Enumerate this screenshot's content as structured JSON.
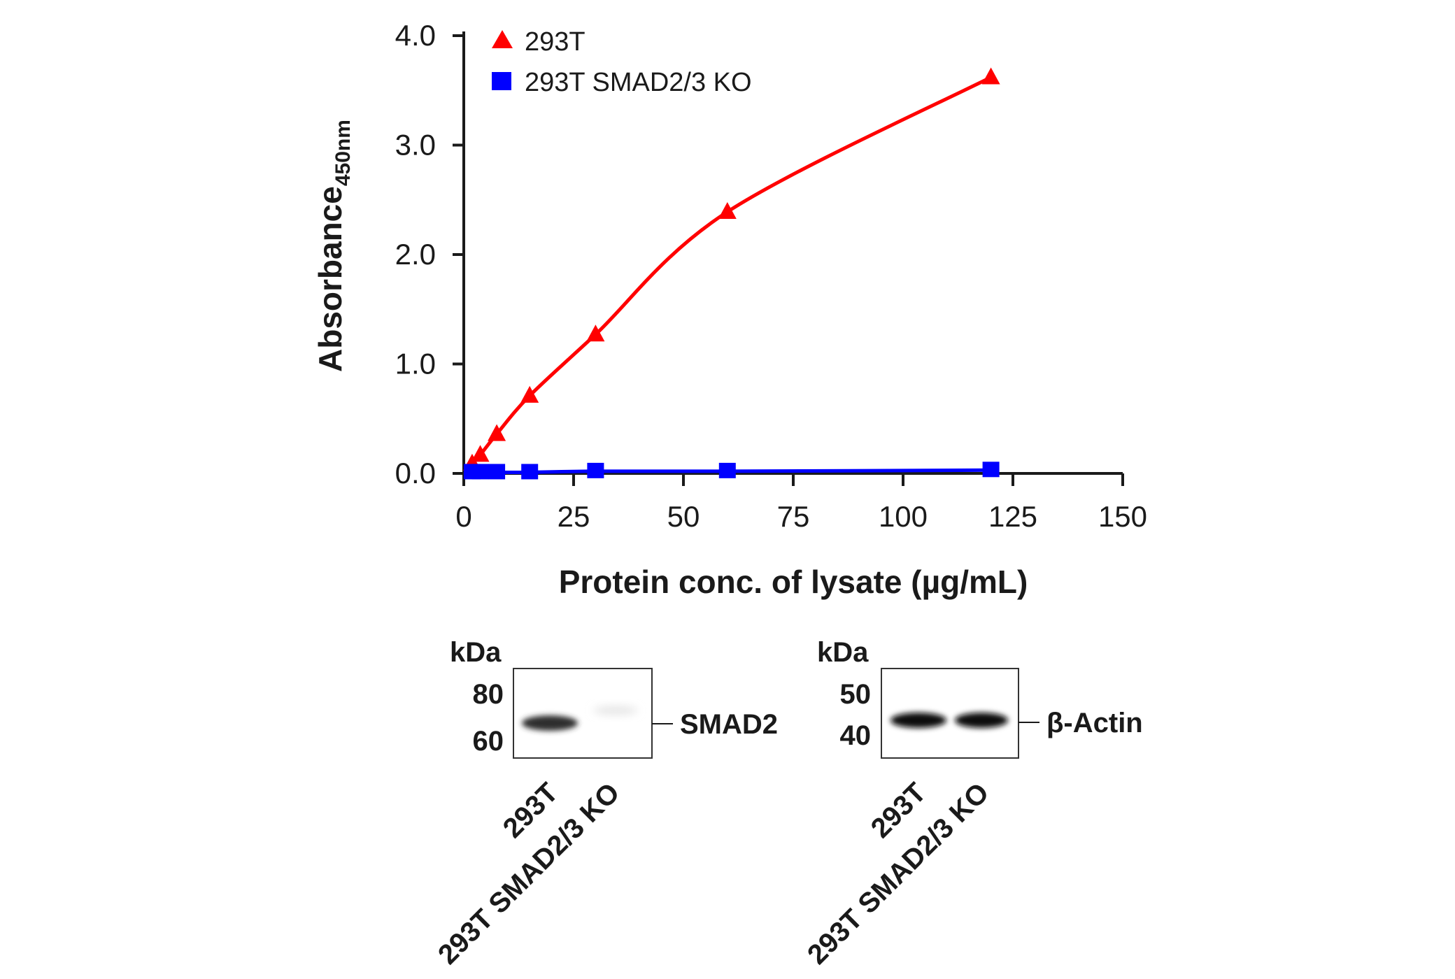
{
  "chart_data": {
    "type": "line",
    "title": "",
    "xlabel": "Protein conc. of lysate (µg/mL)",
    "ylabel_main": "Absorbance",
    "ylabel_sub": "450nm",
    "xlim": [
      0,
      150
    ],
    "ylim": [
      0,
      4.0
    ],
    "x_ticks": [
      0,
      25,
      50,
      75,
      100,
      125,
      150
    ],
    "x_tick_labels": [
      "0",
      "25",
      "50",
      "75",
      "100",
      "125",
      "150"
    ],
    "y_ticks": [
      0,
      1,
      2,
      3,
      4
    ],
    "y_tick_labels": [
      "0.0",
      "1.0",
      "2.0",
      "3.0",
      "4.0"
    ],
    "legend_position": "top-left",
    "series": [
      {
        "name": "293T",
        "color": "#ff0000",
        "marker": "triangle",
        "x": [
          1.9,
          3.75,
          7.5,
          15,
          30,
          60,
          120
        ],
        "y": [
          0.09,
          0.17,
          0.36,
          0.71,
          1.27,
          2.39,
          3.62
        ]
      },
      {
        "name": "293T SMAD2/3 KO",
        "color": "#0000ff",
        "marker": "square",
        "x": [
          1.9,
          3.75,
          7.5,
          15,
          30,
          60,
          120
        ],
        "y": [
          0.01,
          0.01,
          0.01,
          0.01,
          0.02,
          0.02,
          0.03
        ]
      }
    ]
  },
  "blots": [
    {
      "unit_label": "kDa",
      "markers": [
        "80",
        "60"
      ],
      "target": "SMAD2",
      "lanes": [
        "293T",
        "293T SMAD2/3 KO"
      ]
    },
    {
      "unit_label": "kDa",
      "markers": [
        "50",
        "40"
      ],
      "target": "β-Actin",
      "lanes": [
        "293T",
        "293T SMAD2/3 KO"
      ]
    }
  ]
}
